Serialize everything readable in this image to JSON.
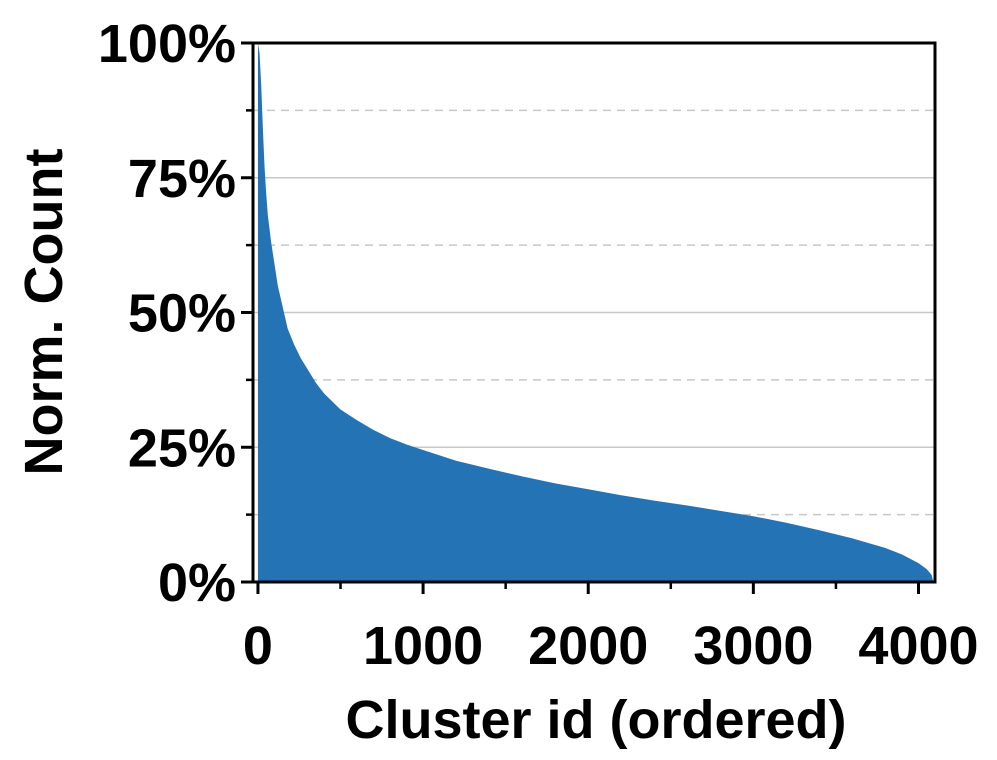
{
  "chart_data": {
    "type": "area",
    "title": "",
    "xlabel": "Cluster id (ordered)",
    "ylabel": "Norm. Count",
    "xlim": [
      -30,
      4100
    ],
    "ylim": [
      0,
      100
    ],
    "x_ticks": [
      0,
      1000,
      2000,
      3000,
      4000
    ],
    "x_tick_labels": [
      "0",
      "1000",
      "2000",
      "3000",
      "4000"
    ],
    "x_minor_ticks": [
      500,
      1500,
      2500,
      3500
    ],
    "y_ticks": [
      0,
      25,
      50,
      75,
      100
    ],
    "y_tick_labels": [
      "0%",
      "25%",
      "50%",
      "75%",
      "100%"
    ],
    "y_minor_ticks": [
      12.5,
      37.5,
      62.5,
      87.5
    ],
    "grid": {
      "major": "solid",
      "minor": "dashed",
      "axis": "y"
    },
    "color": "#2474b5",
    "series": [
      {
        "x": [
          0,
          10,
          20,
          30,
          40,
          50,
          60,
          80,
          100,
          120,
          150,
          180,
          220,
          260,
          300,
          350,
          400,
          500,
          600,
          700,
          800,
          900,
          1000,
          1200,
          1400,
          1600,
          1800,
          2000,
          2200,
          2400,
          2600,
          2800,
          3000,
          3200,
          3400,
          3600,
          3800,
          3900,
          4000,
          4050,
          4080,
          4090
        ],
        "y": [
          100,
          98,
          92,
          84,
          77,
          72,
          68,
          63,
          59,
          55,
          51,
          47,
          44,
          41.5,
          39.5,
          37,
          35,
          32,
          30,
          28.2,
          26.7,
          25.5,
          24.5,
          22.5,
          21,
          19.6,
          18.3,
          17.2,
          16.1,
          15.1,
          14.2,
          13.2,
          12.2,
          11,
          9.6,
          8.1,
          6.3,
          5.1,
          3.5,
          2.4,
          1.3,
          0
        ]
      }
    ]
  }
}
